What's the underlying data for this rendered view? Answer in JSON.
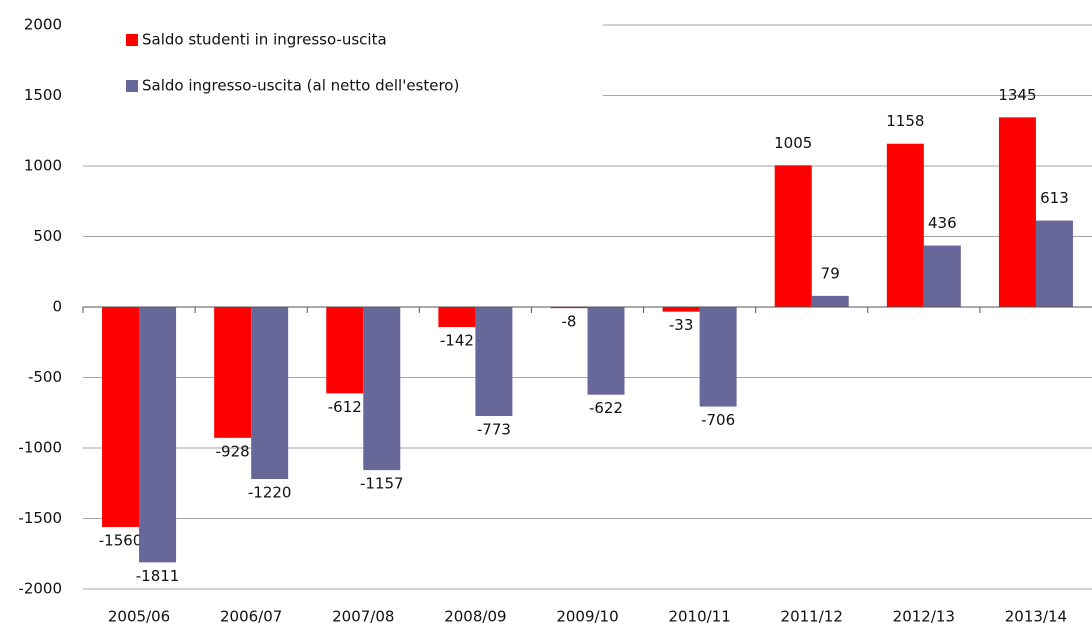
{
  "chart_data": {
    "type": "bar",
    "categories": [
      "2005/06",
      "2006/07",
      "2007/08",
      "2008/09",
      "2009/10",
      "2010/11",
      "2011/12",
      "2012/13",
      "2013/14"
    ],
    "series": [
      {
        "name": "Saldo studenti in ingresso-uscita",
        "color": "#ff0000",
        "values": [
          -1560,
          -928,
          -612,
          -142,
          -8,
          -33,
          1005,
          1158,
          1345
        ]
      },
      {
        "name": "Saldo ingresso-uscita (al netto dell'estero)",
        "color": "#67679a",
        "values": [
          -1811,
          -1220,
          -1157,
          -773,
          -622,
          -706,
          79,
          436,
          613
        ]
      }
    ],
    "ylim": [
      -2000,
      2000
    ],
    "yticks": [
      -2000,
      -1500,
      -1000,
      -500,
      0,
      500,
      1000,
      1500,
      2000
    ],
    "grid": true,
    "legend": "top-left"
  }
}
